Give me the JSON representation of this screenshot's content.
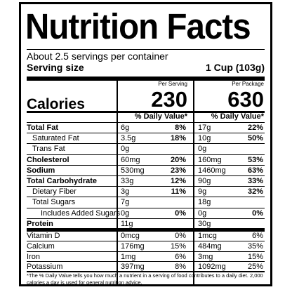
{
  "title": "Nutrition Facts",
  "servings_per_container": "About 2.5 servings per container",
  "serving_size": {
    "label": "Serving size",
    "value": "1 Cup (103g)"
  },
  "columns": {
    "per_serving": "Per Serving",
    "per_package": "Per Package"
  },
  "calories": {
    "label": "Calories",
    "per_serving": "230",
    "per_package": "630"
  },
  "daily_value_header": "% Daily Value*",
  "nutrients": [
    {
      "name": "Total Fat",
      "bold": true,
      "indent": 0,
      "s_amt": "6g",
      "s_dv": "8%",
      "p_amt": "17g",
      "p_dv": "22%"
    },
    {
      "name": "Saturated Fat",
      "bold": false,
      "indent": 1,
      "s_amt": "3.5g",
      "s_dv": "18%",
      "p_amt": "10g",
      "p_dv": "50%"
    },
    {
      "name": "Trans Fat",
      "bold": false,
      "indent": 1,
      "s_amt": "0g",
      "s_dv": "",
      "p_amt": "0g",
      "p_dv": ""
    },
    {
      "name": "Cholesterol",
      "bold": true,
      "indent": 0,
      "s_amt": "60mg",
      "s_dv": "20%",
      "p_amt": "160mg",
      "p_dv": "53%"
    },
    {
      "name": "Sodium",
      "bold": true,
      "indent": 0,
      "s_amt": "530mg",
      "s_dv": "23%",
      "p_amt": "1460mg",
      "p_dv": "63%"
    },
    {
      "name": "Total Carbohydrate",
      "bold": true,
      "indent": 0,
      "s_amt": "33g",
      "s_dv": "12%",
      "p_amt": "90g",
      "p_dv": "33%"
    },
    {
      "name": "Dietary Fiber",
      "bold": false,
      "indent": 1,
      "s_amt": "3g",
      "s_dv": "11%",
      "p_amt": "9g",
      "p_dv": "32%"
    },
    {
      "name": "Total Sugars",
      "bold": false,
      "indent": 1,
      "s_amt": "7g",
      "s_dv": "",
      "p_amt": "18g",
      "p_dv": ""
    },
    {
      "name": "Includes Added Sugars",
      "bold": false,
      "indent": 2,
      "s_amt": "0g",
      "s_dv": "0%",
      "p_amt": "0g",
      "p_dv": "0%"
    },
    {
      "name": "Protein",
      "bold": true,
      "indent": 0,
      "s_amt": "11g",
      "s_dv": "",
      "p_amt": "30g",
      "p_dv": ""
    }
  ],
  "vitamins": [
    {
      "name": "Vitamin D",
      "s_amt": "0mcg",
      "s_dv": "0%",
      "p_amt": "1mcg",
      "p_dv": "6%"
    },
    {
      "name": "Calcium",
      "s_amt": "176mg",
      "s_dv": "15%",
      "p_amt": "484mg",
      "p_dv": "35%"
    },
    {
      "name": "Iron",
      "s_amt": "1mg",
      "s_dv": "6%",
      "p_amt": "3mg",
      "p_dv": "15%"
    },
    {
      "name": "Potassium",
      "s_amt": "397mg",
      "s_dv": "8%",
      "p_amt": "1092mg",
      "p_dv": "25%"
    }
  ],
  "footnote": "*The % Daily Value tells you how much a nutrient in a serving of food contributes to a daily diet. 2,000 calories a day is used for general nutrition advice."
}
